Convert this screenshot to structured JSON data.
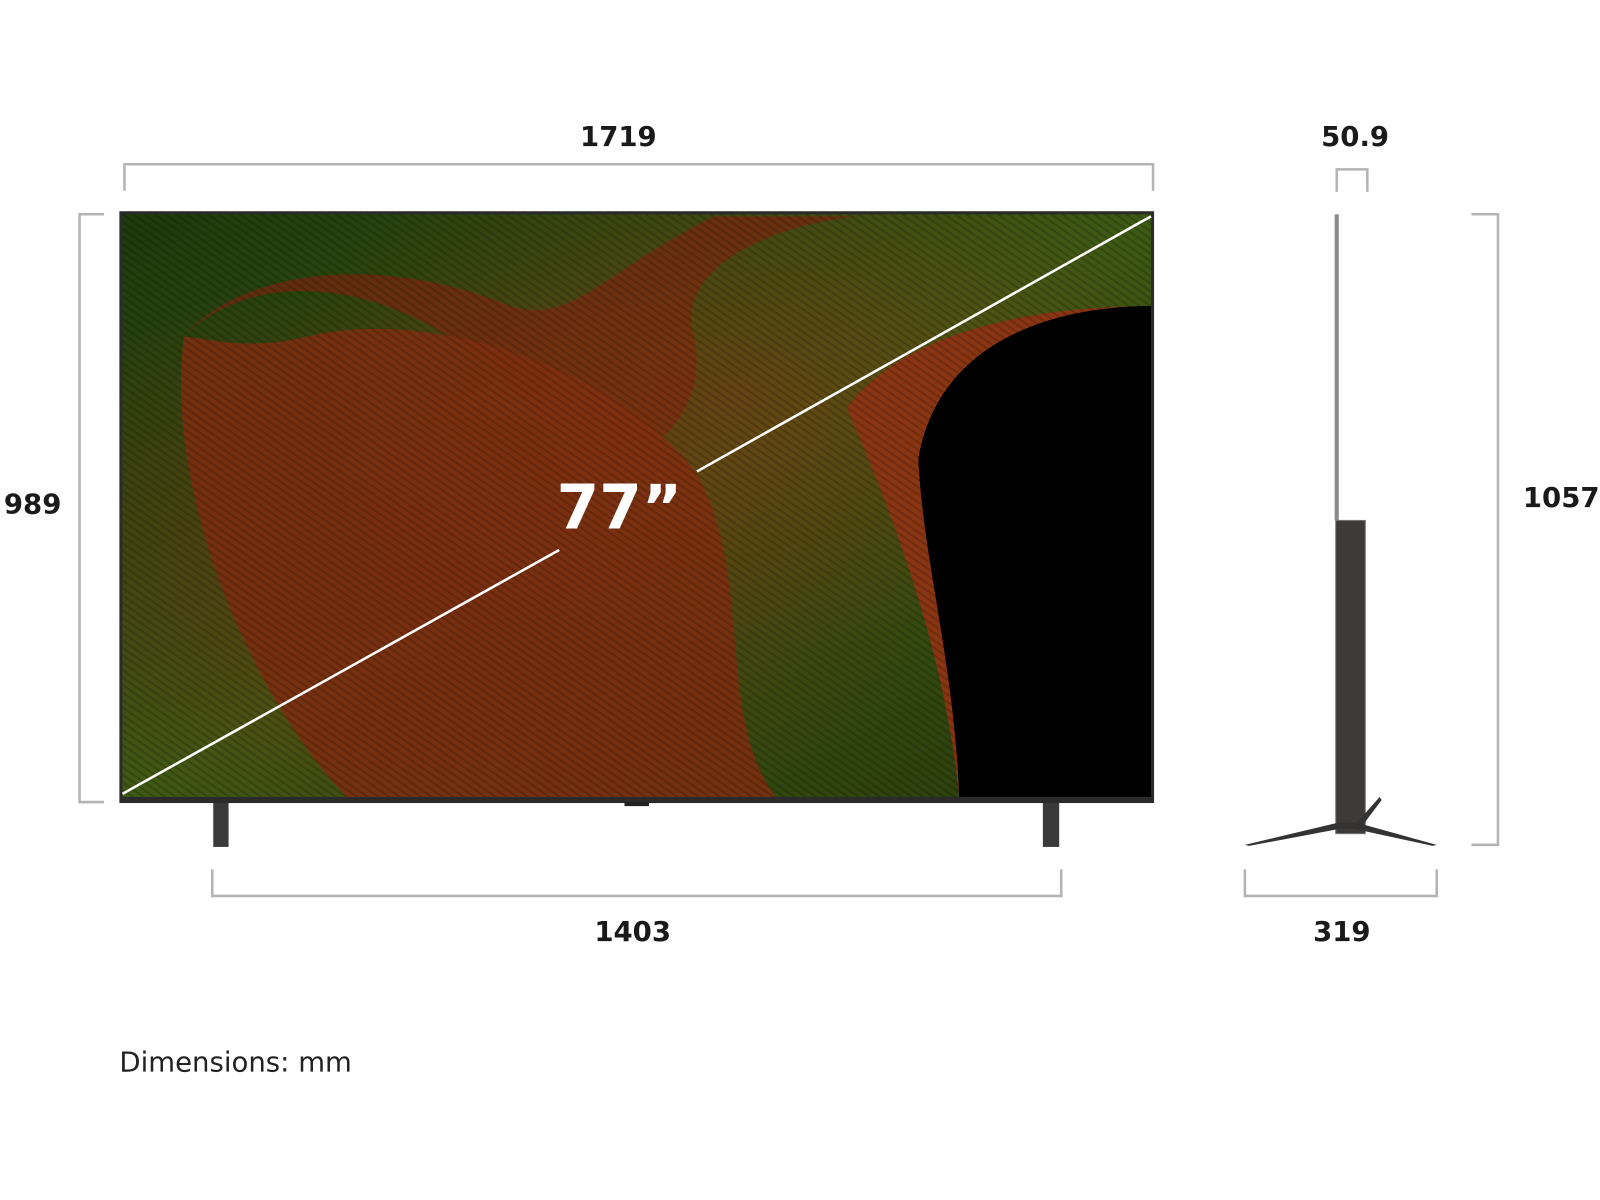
{
  "dimensions": {
    "width": "1719",
    "depth": "50.9",
    "height_screen": "989",
    "height_total": "1057",
    "stand_span": "1403",
    "stand_depth": "319"
  },
  "screen_size": "77”",
  "unit_note": "Dimensions: mm",
  "colors": {
    "bracket": "#b4b4b4",
    "text": "#1a1a1a",
    "frame": "#2b2b2b"
  }
}
